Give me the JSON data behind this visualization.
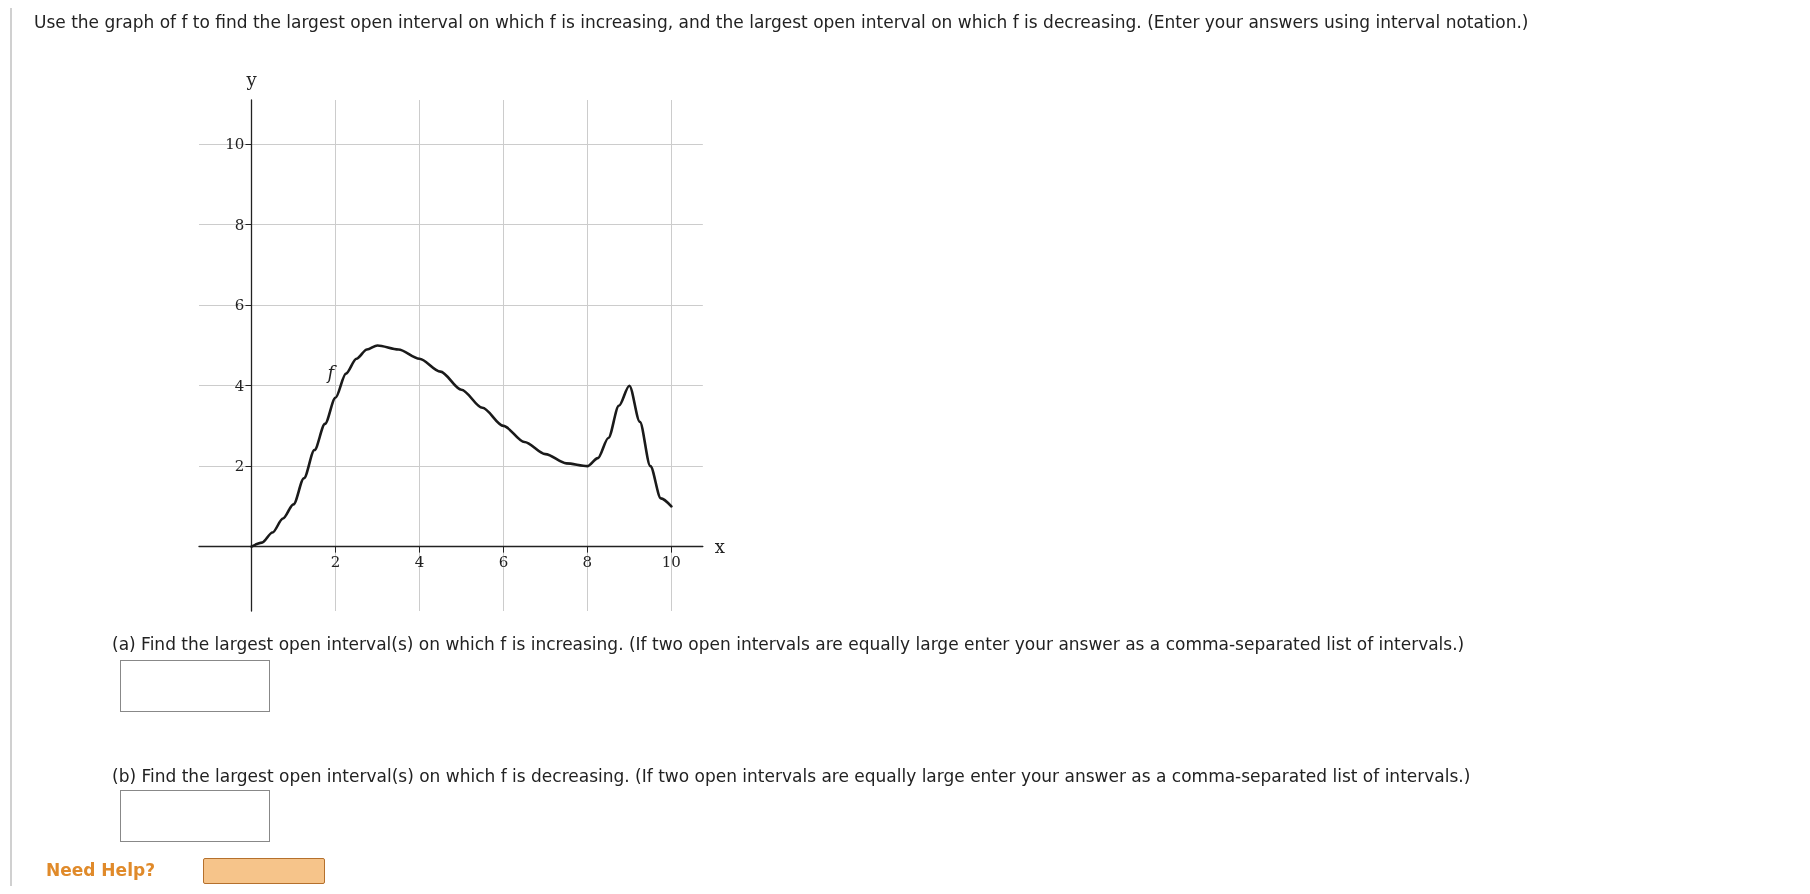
{
  "chart_data": {
    "type": "line",
    "title": "Use the graph of f to find the largest open interval on which f is increasing, and the largest open interval on which f is decreasing. (Enter your answers using interval notation.)",
    "xlabel": "x",
    "ylabel": "y",
    "annotations": [
      "(a) Find the largest open interval(s) on which f is increasing. (If two open intervals are equally large enter your answer as a comma-separated list of intervals.)",
      "(b) Find the largest open interval(s) on which f is decreasing. (If two open intervals are equally large enter your answer as a comma-separated list of intervals.)",
      "Need Help?"
    ],
    "series": [
      {
        "name": "f",
        "color": "#1a1a1a",
        "x": [
          0,
          0.25,
          0.5,
          0.75,
          1,
          1.25,
          1.5,
          1.75,
          2,
          2.25,
          2.5,
          2.75,
          3,
          3.5,
          4,
          4.5,
          5,
          5.5,
          6,
          6.5,
          7,
          7.5,
          8,
          8.25,
          8.5,
          8.75,
          9,
          9.25,
          9.5,
          9.75,
          10
        ],
        "values": [
          0,
          0.1,
          0.35,
          0.7,
          1.05,
          1.7,
          2.4,
          3.05,
          3.7,
          4.3,
          4.67,
          4.9,
          5,
          4.9,
          4.67,
          4.35,
          3.9,
          3.45,
          3,
          2.6,
          2.3,
          2.07,
          2,
          2.2,
          2.7,
          3.5,
          4,
          3.1,
          2,
          1.2,
          1
        ]
      }
    ],
    "xlim": [
      -1.25,
      10.75
    ],
    "ylim": [
      -1.6,
      11.1
    ],
    "xticks": [
      2,
      4,
      6,
      8,
      10
    ],
    "yticks": [
      2,
      4,
      6,
      8,
      10
    ],
    "grid": true,
    "legend": false,
    "marker": "none",
    "line_style": "solid"
  }
}
